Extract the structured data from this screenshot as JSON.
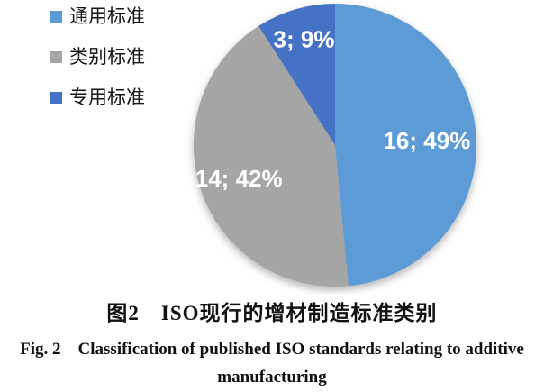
{
  "chart_data": {
    "type": "pie",
    "categories": [
      "通用标准",
      "类别标准",
      "专用标准"
    ],
    "values": [
      16,
      14,
      3
    ],
    "percentages": [
      49,
      42,
      9
    ],
    "data_labels": [
      "16; 49%",
      "14; 42%",
      "3; 9%"
    ],
    "colors": [
      "#5B9BD5",
      "#A5A5A5",
      "#4472C4"
    ],
    "start_angle_deg": 0,
    "direction": "clockwise",
    "legend_position": "left",
    "data_label_format": "value; percent"
  },
  "caption": {
    "zh": "图2　ISO现行的增材制造标准类别",
    "en_line1": "Fig. 2 Classification of published ISO standards relating to additive",
    "en_line2": "manufacturing"
  }
}
